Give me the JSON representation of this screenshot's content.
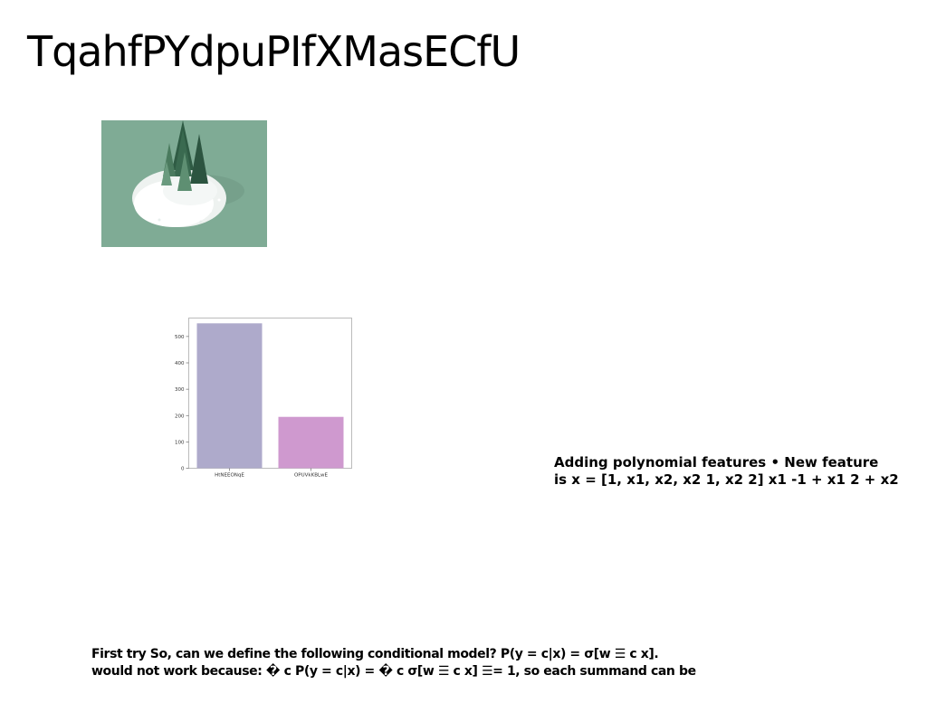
{
  "title": "TqahfPYdpuPIfXMasECfU",
  "image": {
    "description": "",
    "background": "#7fab95"
  },
  "chart_data": {
    "type": "bar",
    "categories": [
      "HtNEEONqE",
      "OPUVkKBLwE"
    ],
    "values": [
      550,
      195
    ],
    "colors": [
      "#aeaacb",
      "#cf99cf"
    ],
    "yticks": [
      0,
      100,
      200,
      300,
      400,
      500
    ],
    "ylim": [
      0,
      570
    ],
    "title": "",
    "xlabel": "",
    "ylabel": "",
    "grid": false
  },
  "text_blocks": {
    "right": [
      "Adding polynomial features • New feature",
      "is x = [1, x1, x2, x2 1, x2 2] x1 -1 + x1 2 + x2"
    ],
    "bottom": [
      "First try So, can we define the following conditional model? P(y = c|x) = σ[w ☰ c x].",
      "would not work because: � c P(y = c|x) = � c σ[w ☰ c x] ☰= 1, so each summand can be"
    ]
  }
}
